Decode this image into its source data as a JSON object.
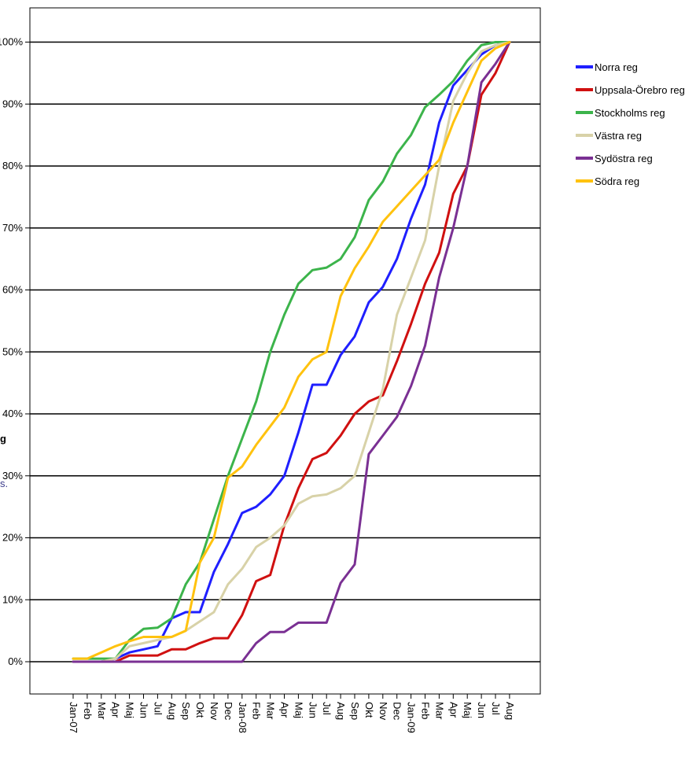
{
  "chart_data": {
    "type": "line",
    "title": "",
    "xlabel": "",
    "ylabel": "",
    "ylim": [
      -5,
      105
    ],
    "yticks": [
      "0%",
      "10%",
      "20%",
      "30%",
      "40%",
      "50%",
      "60%",
      "70%",
      "80%",
      "90%",
      "100%"
    ],
    "ytick_values": [
      0,
      10,
      20,
      30,
      40,
      50,
      60,
      70,
      80,
      90,
      100
    ],
    "grid": true,
    "legend": "right",
    "categories": [
      "Jan-07",
      "Feb",
      "Mar",
      "Apr",
      "Maj",
      "Jun",
      "Jul",
      "Aug",
      "Sep",
      "Okt",
      "Nov",
      "Dec",
      "Jan-08",
      "Feb",
      "Mar",
      "Apr",
      "Maj",
      "Jun",
      "Jul",
      "Aug",
      "Sep",
      "Okt",
      "Nov",
      "Dec",
      "Jan-09",
      "Feb",
      "Mar",
      "Apr",
      "Maj",
      "Jun",
      "Jul",
      "Aug"
    ],
    "series": [
      {
        "name": "Norra reg",
        "color": "#1f1fff",
        "values": [
          0,
          0,
          0,
          0.5,
          1.5,
          2,
          2.5,
          7,
          8,
          8,
          14.5,
          19,
          24,
          25,
          27,
          30,
          37,
          44.7,
          44.7,
          49.5,
          52.5,
          58,
          60.5,
          65,
          71.5,
          77,
          87,
          93,
          95.5,
          98,
          99.5,
          100
        ]
      },
      {
        "name": "Uppsala-Örebro reg",
        "color": "#d01010",
        "values": [
          0,
          0,
          0,
          0,
          1,
          1,
          1,
          2,
          2,
          3,
          3.8,
          3.8,
          7.5,
          13,
          14,
          22,
          28,
          32.7,
          33.7,
          36.5,
          40,
          42,
          43,
          48.5,
          54.5,
          61,
          66,
          75.5,
          80,
          91.5,
          95,
          100
        ]
      },
      {
        "name": "Stockholms reg",
        "color": "#3cb44b",
        "values": [
          0.5,
          0.5,
          0.5,
          0.5,
          3.5,
          5.3,
          5.5,
          7,
          12.5,
          16,
          23,
          30,
          36,
          42,
          50,
          56,
          61,
          63.2,
          63.6,
          65,
          68.5,
          74.5,
          77.5,
          82,
          85,
          89.5,
          91.5,
          93.7,
          97,
          99.5,
          100,
          100
        ]
      },
      {
        "name": "Västra reg",
        "color": "#d8d2a8",
        "values": [
          0,
          0,
          0,
          0.5,
          2.5,
          3,
          3.5,
          4,
          5,
          6.5,
          8,
          12.5,
          15,
          18.5,
          20,
          22,
          25.5,
          26.7,
          27,
          28,
          30,
          37,
          44,
          56,
          62,
          68,
          80,
          90.5,
          95,
          98.5,
          99.5,
          100
        ]
      },
      {
        "name": "Sydöstra reg",
        "color": "#7a3093",
        "values": [
          0,
          0,
          0,
          0,
          0,
          0,
          0,
          0,
          0,
          0,
          0,
          0,
          0,
          3,
          4.8,
          4.8,
          6.3,
          6.3,
          6.3,
          12.7,
          15.7,
          33.5,
          36.5,
          39.5,
          44.5,
          51,
          62,
          70,
          80,
          93.5,
          96.5,
          100
        ]
      },
      {
        "name": "Södra reg",
        "color": "#ffc20e",
        "values": [
          0.5,
          0.5,
          1.5,
          2.5,
          3.3,
          4,
          4,
          4,
          5,
          16,
          20,
          29.7,
          31.5,
          35,
          38,
          41,
          46,
          48.8,
          50,
          59,
          63.5,
          67,
          71,
          73.5,
          76,
          78.5,
          81,
          87,
          92,
          97,
          99,
          100
        ]
      }
    ]
  },
  "edge_fragments": [
    "g",
    "s."
  ]
}
